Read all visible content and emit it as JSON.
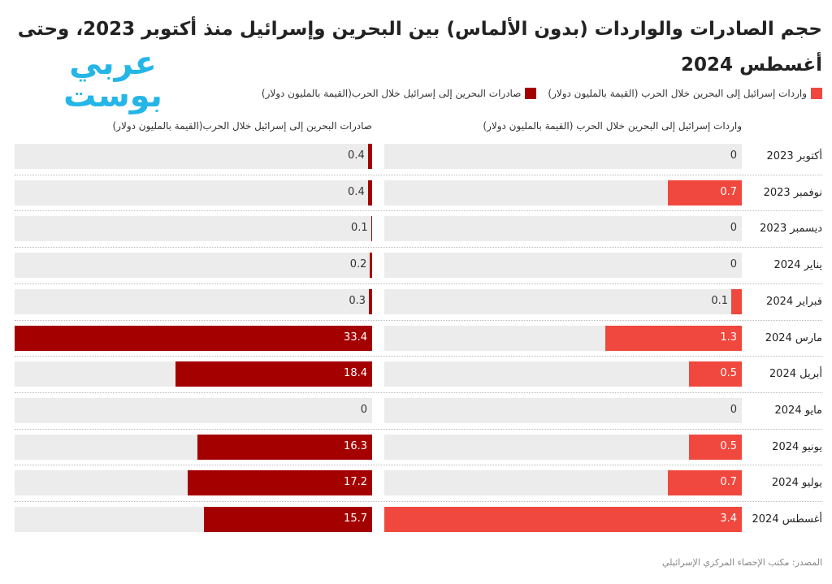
{
  "chart_data": {
    "type": "bar",
    "title": "حجم الصادرات والواردات (بدون الألماس) بين البحرين وإسرائيل منذ أكتوبر 2023، وحتى أغسطس 2024",
    "logo": "عربي بوست",
    "categories": [
      "أكتوبر 2023",
      "نوفمبر 2023",
      "ديسمبر 2023",
      "يناير 2024",
      "فبراير 2024",
      "مارس 2024",
      "أبريل 2024",
      "مايو 2024",
      "يونيو 2024",
      "يوليو 2024",
      "أغسطس 2024"
    ],
    "series": [
      {
        "name": "واردات إسرائيل إلى البحرين خلال الحرب (القيمة بالمليون دولار)",
        "color": "#f0483e",
        "xlim": [
          0,
          3.4
        ],
        "values": [
          0,
          0.7,
          0,
          0,
          0.1,
          1.3,
          0.5,
          0,
          0.5,
          0.7,
          3.4
        ]
      },
      {
        "name": "صادرات البحرين إلى إسرائيل خلال الحرب(القيمة بالمليون دولار)",
        "color": "#a50000",
        "xlim": [
          0,
          33.4
        ],
        "values": [
          0.4,
          0.4,
          0.1,
          0.2,
          0.3,
          33.4,
          18.4,
          0,
          16.3,
          17.2,
          15.7
        ]
      }
    ],
    "source": "المصدر: مكتب الإحصاء المركزي الإسرائيلي"
  }
}
